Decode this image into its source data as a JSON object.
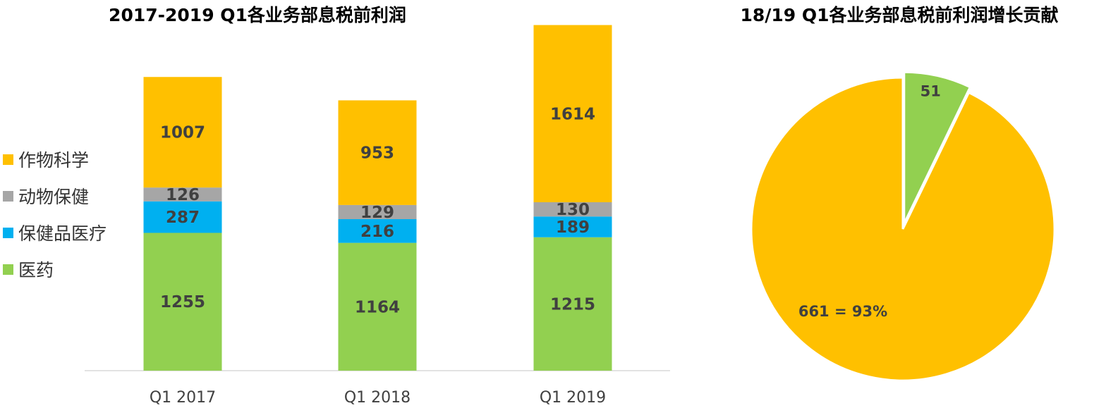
{
  "titles": {
    "bar": "2017-2019 Q1各业务部息税前利润",
    "pie": "18/19 Q1各业务部息税前利润增长贡献"
  },
  "colors": {
    "crop": "#FFC000",
    "animal": "#A6A6A6",
    "consumer": "#00B0F0",
    "pharma": "#92D050"
  },
  "chart_data": [
    {
      "type": "bar",
      "stacked": true,
      "title": "2017-2019 Q1各业务部息税前利润",
      "categories": [
        "Q1 2017",
        "Q1 2018",
        "Q1 2019"
      ],
      "series": [
        {
          "name": "医药",
          "color": "#92D050",
          "values": [
            1255,
            1164,
            1215
          ]
        },
        {
          "name": "保健品医疗",
          "color": "#00B0F0",
          "values": [
            287,
            216,
            189
          ]
        },
        {
          "name": "动物保健",
          "color": "#A6A6A6",
          "values": [
            126,
            129,
            130
          ]
        },
        {
          "name": "作物科学",
          "color": "#FFC000",
          "values": [
            1007,
            953,
            1614
          ]
        }
      ],
      "legend": [
        "作物科学",
        "动物保健",
        "保健品医疗",
        "医药"
      ],
      "legend_position": "left"
    },
    {
      "type": "pie",
      "title": "18/19 Q1各业务部息税前利润增长贡献",
      "slices": [
        {
          "label": "51",
          "value": 51,
          "color": "#92D050"
        },
        {
          "label": "661 = 93%",
          "value": 661,
          "color": "#FFC000"
        }
      ]
    }
  ]
}
